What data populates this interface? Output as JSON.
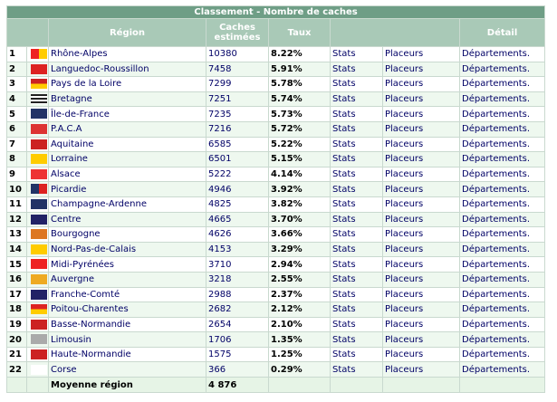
{
  "title": "Classement - Nombre de caches",
  "headers": {
    "region": "Région",
    "caches": "Caches estimées",
    "taux": "Taux",
    "detail": "Détail"
  },
  "rows": [
    [
      1,
      "Rhône-Alpes",
      10380,
      "8.22%",
      "Stats",
      "Placeurs",
      "Départements."
    ],
    [
      2,
      "Languedoc-Roussillon",
      7458,
      "5.91%",
      "Stats",
      "Placeurs",
      "Départements."
    ],
    [
      3,
      "Pays de la Loire",
      7299,
      "5.78%",
      "Stats",
      "Placeurs",
      "Départements."
    ],
    [
      4,
      "Bretagne",
      7251,
      "5.74%",
      "Stats",
      "Placeurs",
      "Départements."
    ],
    [
      5,
      "Île-de-France",
      7235,
      "5.73%",
      "Stats",
      "Placeurs",
      "Départements."
    ],
    [
      6,
      "P.A.C.A",
      7216,
      "5.72%",
      "Stats",
      "Placeurs",
      "Départements."
    ],
    [
      7,
      "Aquitaine",
      6585,
      "5.22%",
      "Stats",
      "Placeurs",
      "Départements."
    ],
    [
      8,
      "Lorraine",
      6501,
      "5.15%",
      "Stats",
      "Placeurs",
      "Départements."
    ],
    [
      9,
      "Alsace",
      5222,
      "4.14%",
      "Stats",
      "Placeurs",
      "Départements."
    ],
    [
      10,
      "Picardie",
      4946,
      "3.92%",
      "Stats",
      "Placeurs",
      "Départements."
    ],
    [
      11,
      "Champagne-Ardenne",
      4825,
      "3.82%",
      "Stats",
      "Placeurs",
      "Départements."
    ],
    [
      12,
      "Centre",
      4665,
      "3.70%",
      "Stats",
      "Placeurs",
      "Départements."
    ],
    [
      13,
      "Bourgogne",
      4626,
      "3.66%",
      "Stats",
      "Placeurs",
      "Départements."
    ],
    [
      14,
      "Nord-Pas-de-Calais",
      4153,
      "3.29%",
      "Stats",
      "Placeurs",
      "Départements."
    ],
    [
      15,
      "Midi-Pyrénées",
      3710,
      "2.94%",
      "Stats",
      "Placeurs",
      "Départements."
    ],
    [
      16,
      "Auvergne",
      3218,
      "2.55%",
      "Stats",
      "Placeurs",
      "Départements."
    ],
    [
      17,
      "Franche-Comté",
      2988,
      "2.37%",
      "Stats",
      "Placeurs",
      "Départements."
    ],
    [
      18,
      "Poitou-Charentes",
      2682,
      "2.12%",
      "Stats",
      "Placeurs",
      "Départements."
    ],
    [
      19,
      "Basse-Normandie",
      2654,
      "2.10%",
      "Stats",
      "Placeurs",
      "Départements."
    ],
    [
      20,
      "Limousin",
      1706,
      "1.35%",
      "Stats",
      "Placeurs",
      "Départements."
    ],
    [
      21,
      "Haute-Normandie",
      1575,
      "1.25%",
      "Stats",
      "Placeurs",
      "Départements."
    ],
    [
      22,
      "Corse",
      366,
      "0.29%",
      "Stats",
      "Placeurs",
      "Départements."
    ]
  ],
  "footer": {
    "label": "Moyenne région",
    "value": "4 876"
  }
}
